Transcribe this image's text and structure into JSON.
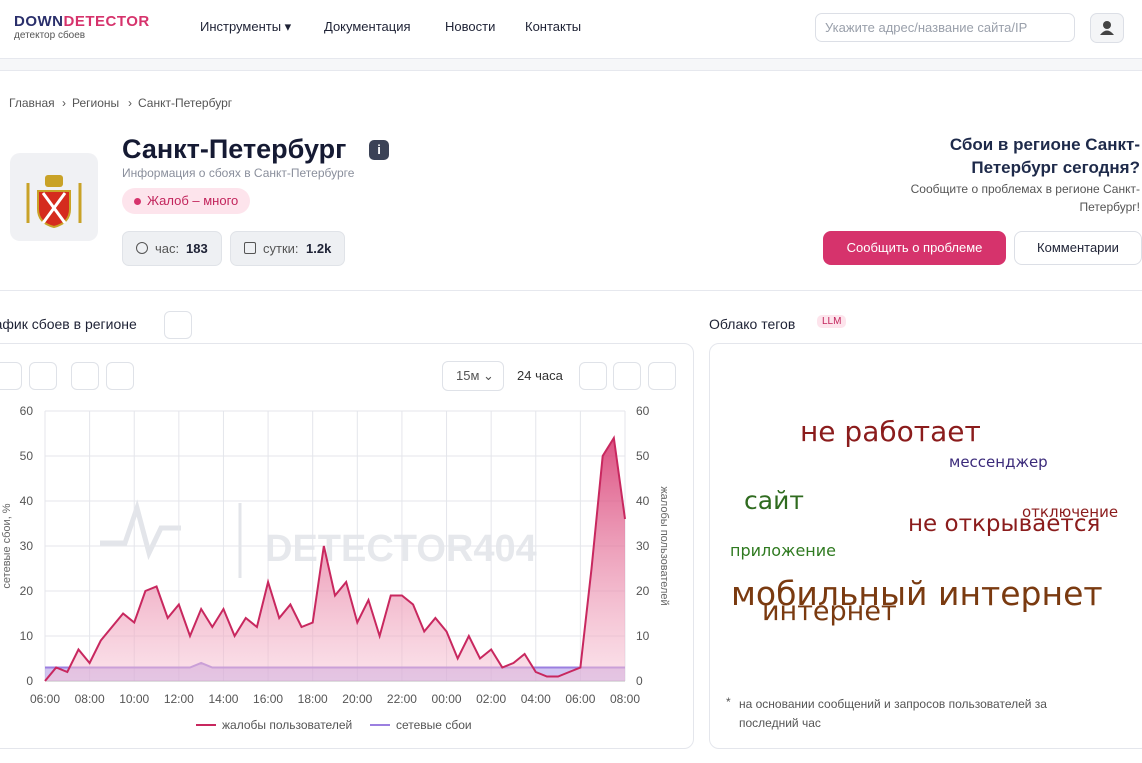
{
  "header": {
    "logo_a": "DOWN",
    "logo_b": "DETECTOR",
    "logo_sub": "детектор сбоев",
    "nav": [
      "Инструменты",
      "Документация",
      "Новости",
      "Контакты"
    ],
    "search_placeholder": "Укажите адрес/название сайта/IP"
  },
  "breadcrumbs": [
    "Главная",
    "Регионы",
    "Санкт-Петербург"
  ],
  "region": {
    "title": "Санкт-Петербург",
    "info": "i",
    "subtitle": "Информация о сбоях в Санкт-Петербурге",
    "badge": "Жалоб – много",
    "stats": [
      {
        "label": "час:",
        "value": "183"
      },
      {
        "label": "сутки:",
        "value": "1.2k"
      }
    ],
    "cta_title": "Сбои в регионе Санкт-Петербург сегодня?",
    "cta_text": "Сообщите о проблемах в регионе Санкт-Петербург!",
    "report_button": "Сообщить о проблеме",
    "comments_button": "Комментарии"
  },
  "chart_panel": {
    "title": "График сбоев в регионе",
    "interval": "15м",
    "range": "24 часа",
    "watermark": "DETECTOR404"
  },
  "chart_data": {
    "type": "line",
    "categories": [
      "06:00",
      null,
      null,
      null,
      "08:00",
      null,
      null,
      null,
      "10:00",
      null,
      null,
      null,
      "12:00",
      null,
      null,
      null,
      "14:00",
      null,
      null,
      null,
      "16:00",
      null,
      null,
      null,
      "18:00",
      null,
      null,
      null,
      "20:00",
      null,
      null,
      null,
      "22:00",
      null,
      null,
      null,
      "00:00",
      null,
      null,
      null,
      "02:00",
      null,
      null,
      null,
      "04:00",
      null,
      null,
      null,
      "06:00",
      null,
      null,
      null,
      "08:00"
    ],
    "y_label": "сетевые сбои, %",
    "y2_label": "жалобы пользователей",
    "ylim": [
      0,
      60
    ],
    "yticks": [
      0,
      10,
      20,
      30,
      40,
      50,
      60
    ],
    "y2lim": [
      0,
      60
    ],
    "y2ticks": [
      0,
      10,
      20,
      30,
      40,
      50,
      60
    ],
    "grid": true,
    "series": [
      {
        "name": "жалобы пользователей",
        "color": "#c8285f",
        "axis": "y2",
        "values": [
          0,
          3,
          2,
          7,
          4,
          9,
          12,
          15,
          13,
          20,
          21,
          14,
          17,
          10,
          16,
          12,
          16,
          10,
          14,
          12,
          22,
          14,
          17,
          12,
          13,
          30,
          19,
          22,
          13,
          18,
          10,
          19,
          19,
          17,
          11,
          14,
          11,
          5,
          10,
          5,
          7,
          3,
          4,
          6,
          2,
          1,
          1,
          2,
          3,
          25,
          50,
          54,
          36
        ]
      },
      {
        "name": "сетевые сбои",
        "color": "#9b7fe0",
        "values": [
          3,
          3,
          3,
          3,
          3,
          3,
          3,
          3,
          3,
          3,
          3,
          3,
          3,
          3,
          4,
          3,
          3,
          3,
          3,
          3,
          3,
          3,
          3,
          3,
          3,
          3,
          3,
          3,
          3,
          3,
          3,
          3,
          3,
          3,
          3,
          3,
          3,
          3,
          3,
          3,
          3,
          3,
          3,
          3,
          3,
          3,
          3,
          3,
          3,
          3,
          3,
          3,
          3
        ]
      }
    ]
  },
  "tag_cloud": {
    "title": "Облако тегов",
    "badge": "LLM",
    "tags": [
      {
        "text": "не работает",
        "color": "#8b1c1c"
      },
      {
        "text": "мессенджер",
        "color": "#3b2a7a"
      },
      {
        "text": "сайт",
        "color": "#2f6b1f"
      },
      {
        "text": "отключение",
        "color": "#8b1c1c"
      },
      {
        "text": "не открывается",
        "color": "#8b1c1c"
      },
      {
        "text": "приложение",
        "color": "#2f7a20"
      },
      {
        "text": "мобильный интернет",
        "color": "#7a3a10"
      },
      {
        "text": "интернет",
        "color": "#7a3a10"
      }
    ],
    "note_star": "*",
    "note": "на основании сообщений и запросов пользователей за последний час"
  }
}
